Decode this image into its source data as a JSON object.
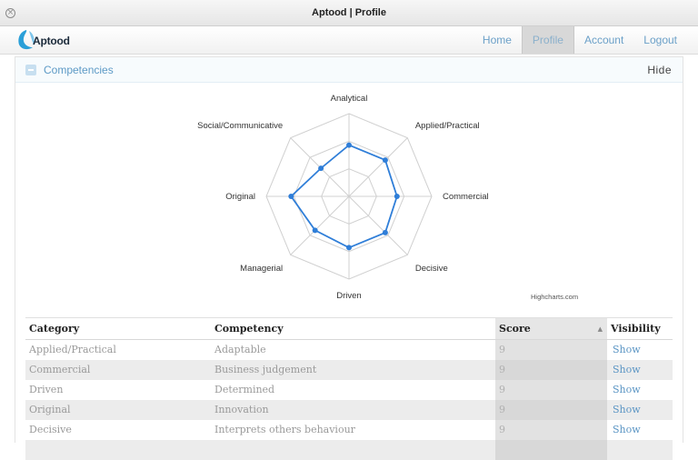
{
  "window": {
    "title": "Aptood | Profile"
  },
  "brand": {
    "logo_text": "Aptood"
  },
  "nav": {
    "items": [
      {
        "label": "Home",
        "active": false
      },
      {
        "label": "Profile",
        "active": true
      },
      {
        "label": "Account",
        "active": false
      },
      {
        "label": "Logout",
        "active": false
      }
    ]
  },
  "panel": {
    "title": "Competencies",
    "toggle_label": "Hide"
  },
  "chart_data": {
    "type": "radar",
    "categories": [
      "Analytical",
      "Applied/Practical",
      "Commercial",
      "Decisive",
      "Driven",
      "Managerial",
      "Original",
      "Social/Communicative"
    ],
    "values": [
      0.62,
      0.62,
      0.58,
      0.62,
      0.62,
      0.58,
      0.7,
      0.48
    ],
    "ylim": [
      0,
      1
    ],
    "grid_rings": 3,
    "series_color": "#2f7ed8",
    "credits": "Highcharts.com"
  },
  "table": {
    "headers": {
      "category": "Category",
      "competency": "Competency",
      "score": "Score",
      "visibility": "Visibility"
    },
    "rows": [
      {
        "category": "Applied/Practical",
        "competency": "Adaptable",
        "score": "9",
        "visibility": "Show"
      },
      {
        "category": "Commercial",
        "competency": "Business judgement",
        "score": "9",
        "visibility": "Show"
      },
      {
        "category": "Driven",
        "competency": "Determined",
        "score": "9",
        "visibility": "Show"
      },
      {
        "category": "Original",
        "competency": "Innovation",
        "score": "9",
        "visibility": "Show"
      },
      {
        "category": "Decisive",
        "competency": "Interprets others behaviour",
        "score": "9",
        "visibility": "Show"
      },
      {
        "category": "",
        "competency": "",
        "score": "",
        "visibility": ""
      }
    ]
  }
}
